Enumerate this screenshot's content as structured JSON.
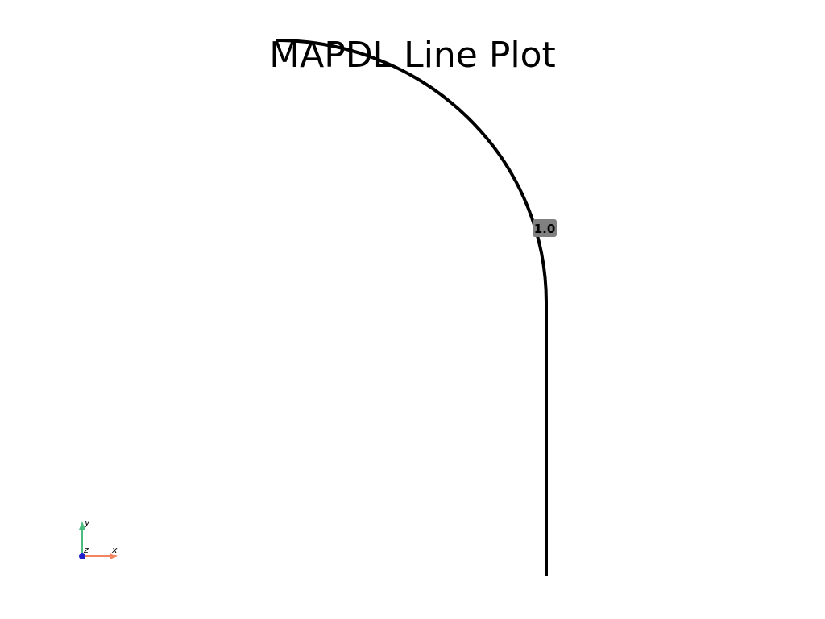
{
  "plot": {
    "title": "MAPDL Line Plot",
    "line_label": "1.0",
    "line_color": "#000000",
    "label_background": "#808080"
  },
  "axes_widget": {
    "x_label": "x",
    "y_label": "y",
    "z_label": "z",
    "x_color": "#f4845f",
    "y_color": "#4cbb7f",
    "z_color": "#1f1fcc"
  }
}
